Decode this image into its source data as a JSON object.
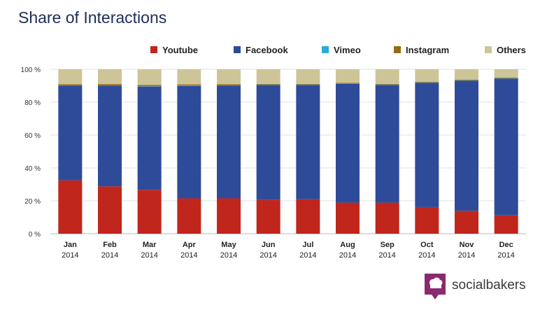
{
  "chart_data": {
    "type": "bar",
    "stacked": true,
    "title": "Share of Interactions",
    "categories": [
      "Jan",
      "Feb",
      "Mar",
      "Apr",
      "May",
      "Jun",
      "Jul",
      "Aug",
      "Sep",
      "Oct",
      "Nov",
      "Dec"
    ],
    "category_years": [
      "2014",
      "2014",
      "2014",
      "2014",
      "2014",
      "2014",
      "2014",
      "2014",
      "2014",
      "2014",
      "2014",
      "2014"
    ],
    "ylim": [
      0,
      100
    ],
    "yticks": [
      0,
      20,
      40,
      60,
      80,
      100
    ],
    "ytick_labels": [
      "0 %",
      "20 %",
      "40 %",
      "60 %",
      "80 %",
      "100 %"
    ],
    "legend_position": "top-right",
    "grid": true,
    "series": [
      {
        "name": "Youtube",
        "color": "#c0261b",
        "values": [
          32.5,
          28.8,
          26.7,
          21.5,
          21.5,
          20.7,
          21.0,
          18.9,
          18.9,
          16.2,
          13.9,
          11.2
        ]
      },
      {
        "name": "Facebook",
        "color": "#2e4b9a",
        "values": [
          57.5,
          61.2,
          62.8,
          68.4,
          68.5,
          69.8,
          69.5,
          72.2,
          71.6,
          75.5,
          79.1,
          83.1
        ]
      },
      {
        "name": "Vimeo",
        "color": "#2ea8dc",
        "values": [
          0.2,
          0.2,
          0.2,
          0.2,
          0.2,
          0.2,
          0.2,
          0.2,
          0.2,
          0.2,
          0.2,
          0.2
        ]
      },
      {
        "name": "Instagram",
        "color": "#9a6a12",
        "values": [
          0.7,
          0.8,
          0.8,
          0.7,
          0.7,
          0.4,
          0.4,
          0.4,
          0.4,
          0.4,
          0.4,
          0.4
        ]
      },
      {
        "name": "Others",
        "color": "#cdc598",
        "values": [
          9.1,
          9.0,
          9.5,
          9.2,
          9.1,
          8.9,
          8.9,
          8.3,
          8.9,
          7.7,
          6.4,
          5.1
        ]
      }
    ]
  },
  "brand": {
    "name": "socialbakers",
    "logo_color": "#8a2a6e"
  }
}
